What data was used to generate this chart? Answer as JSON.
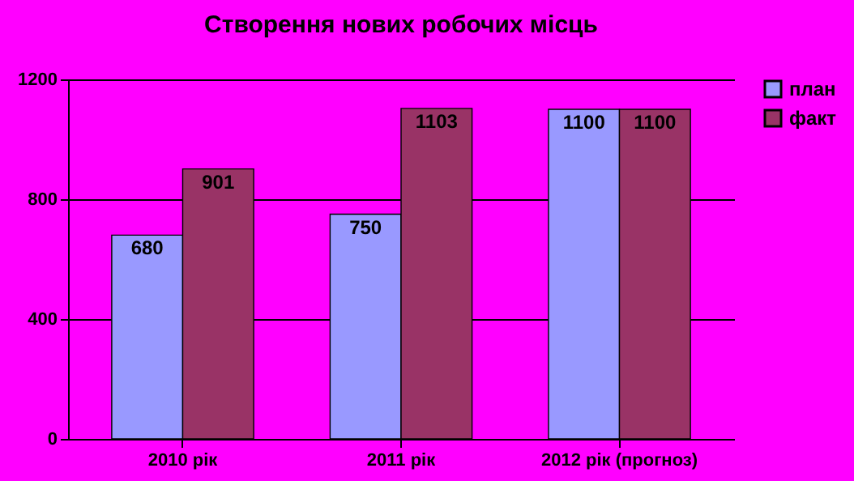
{
  "chart_data": {
    "type": "bar",
    "title": "Створення нових робочих місць",
    "categories": [
      "2010 рік",
      "2011 рік",
      "2012 рік (прогноз)"
    ],
    "series": [
      {
        "name": "план",
        "color": "#9999ff",
        "values": [
          680,
          750,
          1100
        ]
      },
      {
        "name": "факт",
        "color": "#993366",
        "values": [
          901,
          1103,
          1100
        ]
      }
    ],
    "ylim": [
      0,
      1200
    ],
    "yticks": [
      0,
      400,
      800,
      1200
    ],
    "grid": "y",
    "legend": "right",
    "data_labels": true
  }
}
